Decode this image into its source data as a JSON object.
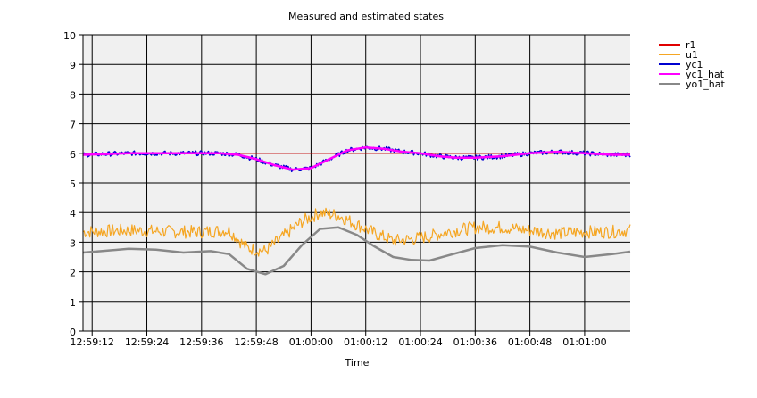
{
  "chart_data": {
    "type": "line",
    "title": "Measured and estimated states",
    "xlabel": "Time",
    "ylabel": "",
    "ylim": [
      0,
      10
    ],
    "yticks": [
      0,
      1,
      2,
      3,
      4,
      5,
      6,
      7,
      8,
      9,
      10
    ],
    "x_range": [
      "12:59:10",
      "01:01:10"
    ],
    "xticks": [
      "12:59:12",
      "12:59:24",
      "12:59:36",
      "12:59:48",
      "01:00:00",
      "01:00:12",
      "01:00:24",
      "01:00:36",
      "01:00:48",
      "01:01:00"
    ],
    "grid": true,
    "legend_position": "right",
    "series": [
      {
        "name": "r1",
        "color": "#e00000",
        "x": [
          "12:59:10",
          "01:01:10"
        ],
        "values": [
          6.0,
          6.0
        ]
      },
      {
        "name": "u1",
        "color": "#f5a623",
        "noisy": true,
        "x": [
          "12:59:10",
          "12:59:20",
          "12:59:30",
          "12:59:36",
          "12:59:42",
          "12:59:46",
          "12:59:50",
          "12:59:54",
          "12:59:58",
          "01:00:02",
          "01:00:06",
          "01:00:10",
          "01:00:14",
          "01:00:18",
          "01:00:22",
          "01:00:26",
          "01:00:30",
          "01:00:36",
          "01:00:42",
          "01:00:48",
          "01:00:54",
          "01:01:00",
          "01:01:06",
          "01:01:10"
        ],
        "values": [
          3.35,
          3.4,
          3.35,
          3.35,
          3.4,
          2.8,
          2.7,
          3.2,
          3.7,
          4.0,
          3.9,
          3.6,
          3.3,
          3.05,
          3.1,
          3.2,
          3.35,
          3.5,
          3.5,
          3.4,
          3.3,
          3.35,
          3.35,
          3.4
        ]
      },
      {
        "name": "yc1",
        "color": "#0000d0",
        "noisy": true,
        "x": [
          "12:59:10",
          "12:59:20",
          "12:59:30",
          "12:59:40",
          "12:59:44",
          "12:59:48",
          "12:59:52",
          "12:59:56",
          "01:00:00",
          "01:00:04",
          "01:00:08",
          "01:00:12",
          "01:00:16",
          "01:00:20",
          "01:00:24",
          "01:00:28",
          "01:00:32",
          "01:00:36",
          "01:00:42",
          "01:00:48",
          "01:00:54",
          "01:01:00",
          "01:01:06",
          "01:01:10"
        ],
        "values": [
          5.95,
          6.0,
          6.0,
          6.0,
          5.95,
          5.8,
          5.6,
          5.45,
          5.5,
          5.8,
          6.1,
          6.2,
          6.15,
          6.05,
          6.0,
          5.9,
          5.85,
          5.85,
          5.9,
          6.0,
          6.05,
          6.0,
          5.95,
          5.95
        ]
      },
      {
        "name": "yc1_hat",
        "color": "#ff00ff",
        "x": [
          "12:59:10",
          "12:59:20",
          "12:59:30",
          "12:59:40",
          "12:59:44",
          "12:59:48",
          "12:59:52",
          "12:59:56",
          "01:00:00",
          "01:00:04",
          "01:00:08",
          "01:00:12",
          "01:00:16",
          "01:00:20",
          "01:00:24",
          "01:00:28",
          "01:00:32",
          "01:00:36",
          "01:00:42",
          "01:00:48",
          "01:00:54",
          "01:01:00",
          "01:01:06",
          "01:01:10"
        ],
        "values": [
          5.95,
          6.0,
          6.0,
          6.0,
          5.95,
          5.8,
          5.6,
          5.45,
          5.5,
          5.8,
          6.1,
          6.2,
          6.15,
          6.05,
          6.0,
          5.9,
          5.85,
          5.85,
          5.9,
          6.0,
          6.05,
          6.0,
          5.95,
          5.95
        ]
      },
      {
        "name": "yo1_hat",
        "color": "#888888",
        "x": [
          "12:59:10",
          "12:59:14",
          "12:59:20",
          "12:59:26",
          "12:59:32",
          "12:59:38",
          "12:59:42",
          "12:59:46",
          "12:59:50",
          "12:59:54",
          "12:59:58",
          "01:00:02",
          "01:00:06",
          "01:00:10",
          "01:00:14",
          "01:00:18",
          "01:00:22",
          "01:00:26",
          "01:00:30",
          "01:00:36",
          "01:00:42",
          "01:00:48",
          "01:00:54",
          "01:01:00",
          "01:01:06",
          "01:01:10"
        ],
        "values": [
          2.65,
          2.7,
          2.78,
          2.75,
          2.65,
          2.7,
          2.6,
          2.1,
          1.92,
          2.2,
          2.9,
          3.45,
          3.5,
          3.25,
          2.85,
          2.5,
          2.4,
          2.38,
          2.55,
          2.8,
          2.9,
          2.85,
          2.65,
          2.5,
          2.6,
          2.68
        ]
      }
    ]
  }
}
